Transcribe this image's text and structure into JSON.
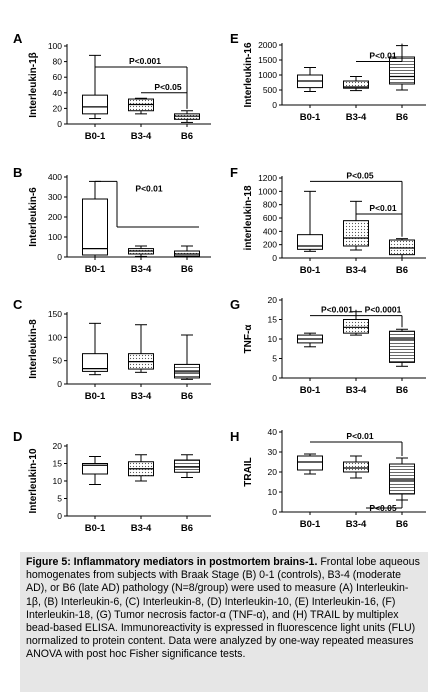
{
  "categories": [
    "B0-1",
    "B3-4",
    "B6"
  ],
  "chart_data": [
    {
      "type": "box",
      "letter": "A",
      "ylabel": "Interleukin-1β",
      "ylim": [
        0,
        100
      ],
      "ticks": [
        0,
        20,
        40,
        60,
        80,
        100
      ],
      "categories": [
        "B0-1",
        "B3-4",
        "B6"
      ],
      "boxes": [
        {
          "category": "B0-1",
          "min": 7,
          "q1": 13,
          "median": 22,
          "q3": 37,
          "max": 88,
          "fill": "white"
        },
        {
          "category": "B3-4",
          "min": 13,
          "q1": 17,
          "median": 25,
          "q3": 32,
          "max": 33,
          "fill": "dotted"
        },
        {
          "category": "B6",
          "min": 2,
          "q1": 6,
          "median": 10,
          "q3": 13,
          "max": 17,
          "fill": "dotted"
        }
      ],
      "annotations": [
        {
          "text": "P<0.001",
          "from": "B0-1",
          "to": "B6",
          "y": 73
        },
        {
          "text": "P<0.05",
          "from": "B3-4",
          "to": "B6",
          "y": 40
        }
      ]
    },
    {
      "type": "box",
      "letter": "B",
      "ylabel": "Interleukin-6",
      "ylim": [
        0,
        400
      ],
      "ticks": [
        0,
        100,
        200,
        300,
        400
      ],
      "categories": [
        "B0-1",
        "B3-4",
        "B6"
      ],
      "boxes": [
        {
          "category": "B0-1",
          "min": 0,
          "q1": 10,
          "median": 42,
          "q3": 290,
          "max": 378,
          "fill": "white"
        },
        {
          "category": "B3-4",
          "min": 3,
          "q1": 15,
          "median": 30,
          "q3": 42,
          "max": 55,
          "fill": "dotted"
        },
        {
          "category": "B6",
          "min": 0,
          "q1": 5,
          "median": 15,
          "q3": 30,
          "max": 55,
          "fill": "dotted"
        }
      ],
      "annotations": [
        {
          "text": "P<0.01",
          "from": "B0-1",
          "to": "B6",
          "y": 150,
          "style": "bracket-to-line"
        }
      ]
    },
    {
      "type": "box",
      "letter": "C",
      "ylabel": "Interleukin-8",
      "ylim": [
        0,
        150
      ],
      "ticks": [
        0,
        50,
        100,
        150
      ],
      "categories": [
        "B0-1",
        "B3-4",
        "B6"
      ],
      "boxes": [
        {
          "category": "B0-1",
          "min": 20,
          "q1": 27,
          "median": 33,
          "q3": 65,
          "max": 130,
          "fill": "white"
        },
        {
          "category": "B3-4",
          "min": 25,
          "q1": 32,
          "median": 48,
          "q3": 65,
          "max": 127,
          "fill": "dotted"
        },
        {
          "category": "B6",
          "min": 10,
          "q1": 13,
          "median": 26,
          "q3": 42,
          "max": 105,
          "fill": "striped"
        }
      ],
      "annotations": []
    },
    {
      "type": "box",
      "letter": "D",
      "ylabel": "Interleukin-10",
      "ylim": [
        0,
        20
      ],
      "ticks": [
        0,
        5,
        10,
        15,
        20
      ],
      "categories": [
        "B0-1",
        "B3-4",
        "B6"
      ],
      "boxes": [
        {
          "category": "B0-1",
          "min": 9,
          "q1": 12,
          "median": 14.5,
          "q3": 15,
          "max": 17,
          "fill": "white"
        },
        {
          "category": "B3-4",
          "min": 10,
          "q1": 11.5,
          "median": 13.5,
          "q3": 15.5,
          "max": 17.5,
          "fill": "dotted"
        },
        {
          "category": "B6",
          "min": 11,
          "q1": 12.5,
          "median": 14,
          "q3": 16,
          "max": 17.5,
          "fill": "striped"
        }
      ],
      "annotations": []
    },
    {
      "type": "box",
      "letter": "E",
      "ylabel": "Interleukin-16",
      "ylim": [
        0,
        2000
      ],
      "ticks": [
        0,
        500,
        1000,
        1500,
        2000
      ],
      "categories": [
        "B0-1",
        "B3-4",
        "B6"
      ],
      "boxes": [
        {
          "category": "B0-1",
          "min": 450,
          "q1": 580,
          "median": 800,
          "q3": 1000,
          "max": 1250,
          "fill": "white"
        },
        {
          "category": "B3-4",
          "min": 480,
          "q1": 560,
          "median": 600,
          "q3": 800,
          "max": 950,
          "fill": "dotted"
        },
        {
          "category": "B6",
          "min": 500,
          "q1": 700,
          "median": 950,
          "q3": 1600,
          "max": 1980,
          "fill": "striped"
        }
      ],
      "annotations": [
        {
          "text": "P<0.01",
          "from": "B3-4",
          "to": "B6",
          "y": 1450
        }
      ]
    },
    {
      "type": "box",
      "letter": "F",
      "ylabel": "interleukin-18",
      "ylim": [
        0,
        1200
      ],
      "ticks": [
        0,
        200,
        400,
        600,
        800,
        1000,
        1200
      ],
      "categories": [
        "B0-1",
        "B3-4",
        "B6"
      ],
      "boxes": [
        {
          "category": "B0-1",
          "min": 100,
          "q1": 130,
          "median": 180,
          "q3": 350,
          "max": 1000,
          "fill": "white"
        },
        {
          "category": "B3-4",
          "min": 120,
          "q1": 180,
          "median": 300,
          "q3": 560,
          "max": 850,
          "fill": "dotted"
        },
        {
          "category": "B6",
          "min": 0,
          "q1": 50,
          "median": 150,
          "q3": 270,
          "max": 290,
          "fill": "dotted"
        }
      ],
      "annotations": [
        {
          "text": "P<0.05",
          "from": "B0-1",
          "to": "B6",
          "y": 1150
        },
        {
          "text": "P<0.01",
          "from": "B3-4",
          "to": "B6",
          "y": 660
        }
      ]
    },
    {
      "type": "box",
      "letter": "G",
      "ylabel": "TNF-α",
      "ylim": [
        0,
        20
      ],
      "ticks": [
        0,
        5,
        10,
        15,
        20
      ],
      "categories": [
        "B0-1",
        "B3-4",
        "B6"
      ],
      "boxes": [
        {
          "category": "B0-1",
          "min": 8,
          "q1": 9,
          "median": 10,
          "q3": 11,
          "max": 11.5,
          "fill": "white"
        },
        {
          "category": "B3-4",
          "min": 11,
          "q1": 11.5,
          "median": 13,
          "q3": 15,
          "max": 17,
          "fill": "dotted"
        },
        {
          "category": "B6",
          "min": 3,
          "q1": 4,
          "median": 10,
          "q3": 12,
          "max": 12.5,
          "fill": "striped"
        }
      ],
      "annotations": [
        {
          "text": "P<0.001",
          "from": "B0-1",
          "to": "B3-4",
          "y": 16
        },
        {
          "text": "P<0.0001",
          "from": "B3-4",
          "to": "B6",
          "y": 16
        }
      ]
    },
    {
      "type": "box",
      "letter": "H",
      "ylabel": "TRAIL",
      "ylim": [
        0,
        40
      ],
      "ticks": [
        0,
        10,
        20,
        30,
        40
      ],
      "categories": [
        "B0-1",
        "B3-4",
        "B6"
      ],
      "boxes": [
        {
          "category": "B0-1",
          "min": 19,
          "q1": 21,
          "median": 25,
          "q3": 28,
          "max": 29,
          "fill": "white"
        },
        {
          "category": "B3-4",
          "min": 17,
          "q1": 20,
          "median": 22,
          "q3": 25,
          "max": 28,
          "fill": "dotted"
        },
        {
          "category": "B6",
          "min": 6,
          "q1": 9,
          "median": 16,
          "q3": 24,
          "max": 27,
          "fill": "striped"
        }
      ],
      "annotations": [
        {
          "text": "P<0.01",
          "from": "B0-1",
          "to": "B6",
          "y": 35
        },
        {
          "text": "P<0.05",
          "from": "B3-4",
          "to": "B6",
          "y": 2,
          "style": "below"
        }
      ]
    }
  ],
  "caption": {
    "lead": "Figure 5: Inflammatory mediators in postmortem brains-1.",
    "body": " Frontal lobe aqueous homogenates from subjects with Braak Stage (B) 0-1 (controls), B3-4 (moderate AD), or B6 (late AD) pathology (N=8/group) were used to measure (A) Interleukin-1β, (B) Interleukin-6, (C) Interleukin-8, (D) Interleukin-10, (E) Interleukin-16, (F) Interleukin-18, (G) Tumor necrosis factor-α (TNF-α), and (H) TRAIL by multiplex bead-based ELISA. Immunoreactivity is expressed in fluorescence light units (FLU) normalized to protein content. Data were analyzed by one-way repeated measures ANOVA with post hoc Fisher significance tests."
  }
}
